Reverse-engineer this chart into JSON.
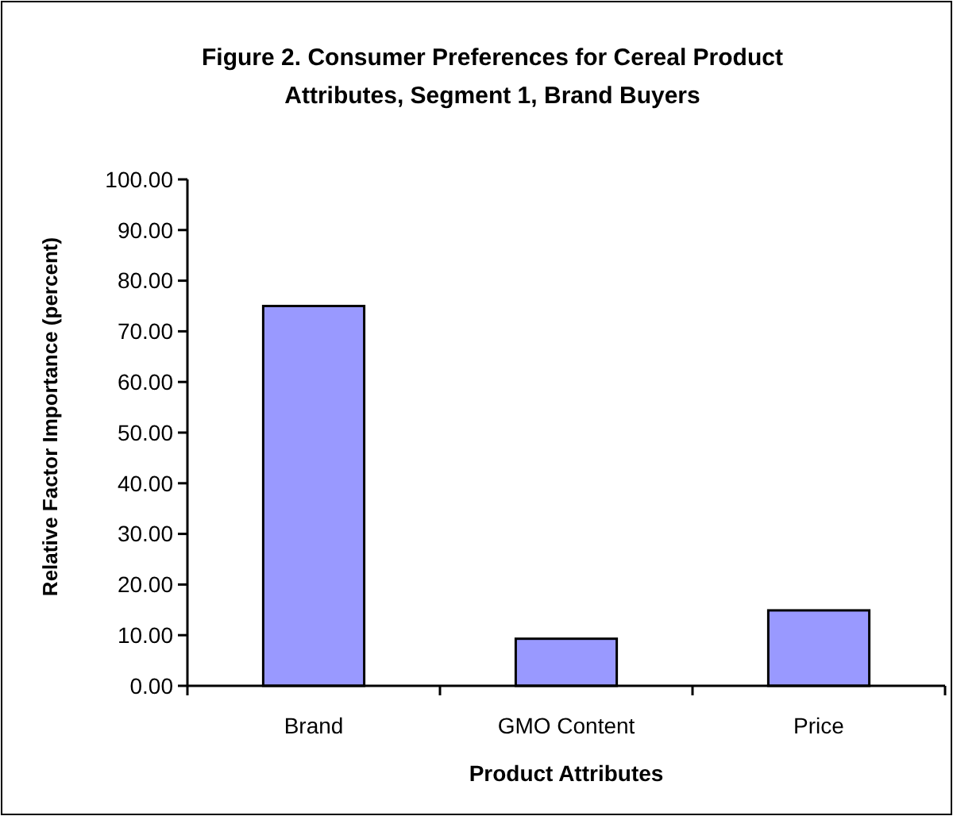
{
  "chart_data": {
    "type": "bar",
    "title": "Figure 2. Consumer Preferences for Cereal Product Attributes, Segment 1, Brand Buyers",
    "xlabel": "Product Attributes",
    "ylabel": "Relative Factor Importance (percent)",
    "categories": [
      "Brand",
      "GMO Content",
      "Price"
    ],
    "values": [
      75.0,
      9.3,
      14.9
    ],
    "color": "#9999ff",
    "ylim": [
      0,
      100
    ],
    "yticks": [
      {
        "value": 0,
        "label": "0.00"
      },
      {
        "value": 10,
        "label": "10.00"
      },
      {
        "value": 20,
        "label": "20.00"
      },
      {
        "value": 30,
        "label": "30.00"
      },
      {
        "value": 40,
        "label": "40.00"
      },
      {
        "value": 50,
        "label": "50.00"
      },
      {
        "value": 60,
        "label": "60.00"
      },
      {
        "value": 70,
        "label": "70.00"
      },
      {
        "value": 80,
        "label": "80.00"
      },
      {
        "value": 90,
        "label": "90.00"
      },
      {
        "value": 100,
        "label": "100.00"
      }
    ]
  }
}
